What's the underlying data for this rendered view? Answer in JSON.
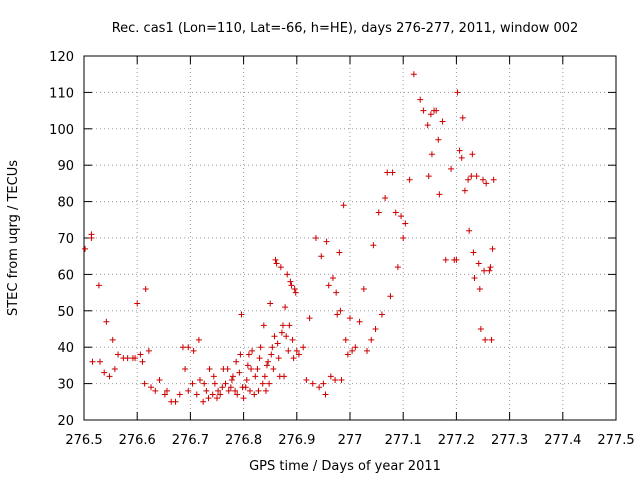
{
  "chart_data": {
    "type": "scatter",
    "title": "Rec. cas1 (Lon=110, Lat=-66, h=HE), days 276-277, 2011, window 002",
    "xlabel": "GPS time / Days of year 2011",
    "ylabel": "STEC from uqrg / TECUs",
    "xlim": [
      276.5,
      277.5
    ],
    "ylim": [
      20,
      120
    ],
    "xticks": [
      276.5,
      276.6,
      276.7,
      276.8,
      276.9,
      277,
      277.1,
      277.2,
      277.3,
      277.4,
      277.5
    ],
    "xtick_labels": [
      "276.5",
      "276.6",
      "276.7",
      "276.8",
      "276.9",
      "277",
      "277.1",
      "277.2",
      "277.3",
      "277.4",
      "277.5"
    ],
    "yticks": [
      20,
      30,
      40,
      50,
      60,
      70,
      80,
      90,
      100,
      110,
      120
    ],
    "ytick_labels": [
      "20",
      "30",
      "40",
      "50",
      "60",
      "70",
      "80",
      "90",
      "100",
      "110",
      "120"
    ],
    "marker": "+",
    "marker_color": "#cc0000",
    "series": [
      {
        "name": "STEC",
        "points": [
          [
            276.502,
            67
          ],
          [
            276.514,
            71
          ],
          [
            276.514,
            70
          ],
          [
            276.516,
            36
          ],
          [
            276.528,
            57
          ],
          [
            276.53,
            36
          ],
          [
            276.538,
            33
          ],
          [
            276.542,
            47
          ],
          [
            276.548,
            32
          ],
          [
            276.554,
            42
          ],
          [
            276.558,
            34
          ],
          [
            276.564,
            38
          ],
          [
            276.574,
            37
          ],
          [
            276.582,
            37
          ],
          [
            276.592,
            37
          ],
          [
            276.596,
            37
          ],
          [
            276.6,
            52
          ],
          [
            276.606,
            38
          ],
          [
            276.61,
            36
          ],
          [
            276.614,
            30
          ],
          [
            276.616,
            56
          ],
          [
            276.622,
            39
          ],
          [
            276.626,
            29
          ],
          [
            276.634,
            28
          ],
          [
            276.642,
            31
          ],
          [
            276.652,
            27
          ],
          [
            276.656,
            28
          ],
          [
            276.664,
            25
          ],
          [
            276.672,
            25
          ],
          [
            276.68,
            27
          ],
          [
            276.686,
            40
          ],
          [
            276.69,
            34
          ],
          [
            276.696,
            40
          ],
          [
            276.696,
            28
          ],
          [
            276.704,
            30
          ],
          [
            276.706,
            39
          ],
          [
            276.712,
            27
          ],
          [
            276.716,
            42
          ],
          [
            276.718,
            31
          ],
          [
            276.724,
            25
          ],
          [
            276.726,
            30
          ],
          [
            276.73,
            28
          ],
          [
            276.734,
            26
          ],
          [
            276.736,
            34
          ],
          [
            276.742,
            27
          ],
          [
            276.744,
            32
          ],
          [
            276.746,
            30
          ],
          [
            276.75,
            26
          ],
          [
            276.752,
            28
          ],
          [
            276.756,
            27
          ],
          [
            276.76,
            29
          ],
          [
            276.762,
            34
          ],
          [
            276.766,
            30
          ],
          [
            276.77,
            34
          ],
          [
            276.772,
            28
          ],
          [
            276.776,
            29
          ],
          [
            276.778,
            31
          ],
          [
            276.78,
            32
          ],
          [
            276.784,
            28
          ],
          [
            276.786,
            36
          ],
          [
            276.788,
            27
          ],
          [
            276.792,
            33
          ],
          [
            276.794,
            38
          ],
          [
            276.796,
            49
          ],
          [
            276.798,
            29
          ],
          [
            276.8,
            26
          ],
          [
            276.804,
            29
          ],
          [
            276.806,
            31
          ],
          [
            276.808,
            35
          ],
          [
            276.81,
            38
          ],
          [
            276.812,
            28
          ],
          [
            276.814,
            34
          ],
          [
            276.816,
            39
          ],
          [
            276.82,
            27
          ],
          [
            276.822,
            32
          ],
          [
            276.826,
            34
          ],
          [
            276.828,
            28
          ],
          [
            276.83,
            37
          ],
          [
            276.832,
            40
          ],
          [
            276.836,
            30
          ],
          [
            276.838,
            46
          ],
          [
            276.84,
            32
          ],
          [
            276.842,
            28
          ],
          [
            276.844,
            35
          ],
          [
            276.846,
            36
          ],
          [
            276.848,
            30
          ],
          [
            276.85,
            52
          ],
          [
            276.852,
            38
          ],
          [
            276.854,
            40
          ],
          [
            276.856,
            34
          ],
          [
            276.858,
            43
          ],
          [
            276.86,
            64
          ],
          [
            276.862,
            63
          ],
          [
            276.864,
            41
          ],
          [
            276.866,
            37
          ],
          [
            276.868,
            32
          ],
          [
            276.87,
            62
          ],
          [
            276.872,
            44
          ],
          [
            276.874,
            46
          ],
          [
            276.876,
            32
          ],
          [
            276.878,
            51
          ],
          [
            276.88,
            43
          ],
          [
            276.882,
            60
          ],
          [
            276.884,
            39
          ],
          [
            276.886,
            46
          ],
          [
            276.888,
            58
          ],
          [
            276.89,
            57
          ],
          [
            276.892,
            42
          ],
          [
            276.894,
            37
          ],
          [
            276.896,
            56
          ],
          [
            276.898,
            55
          ],
          [
            276.9,
            39
          ],
          [
            276.904,
            38
          ],
          [
            276.912,
            40
          ],
          [
            276.918,
            31
          ],
          [
            276.924,
            48
          ],
          [
            276.93,
            30
          ],
          [
            276.936,
            70
          ],
          [
            276.942,
            29
          ],
          [
            276.946,
            65
          ],
          [
            276.95,
            30
          ],
          [
            276.954,
            27
          ],
          [
            276.956,
            69
          ],
          [
            276.96,
            57
          ],
          [
            276.964,
            32
          ],
          [
            276.968,
            59
          ],
          [
            276.972,
            31
          ],
          [
            276.974,
            55
          ],
          [
            276.976,
            49
          ],
          [
            276.98,
            66
          ],
          [
            276.982,
            50
          ],
          [
            276.984,
            31
          ],
          [
            276.988,
            79
          ],
          [
            276.992,
            42
          ],
          [
            276.996,
            38
          ],
          [
            277.0,
            48
          ],
          [
            277.004,
            39
          ],
          [
            277.01,
            40
          ],
          [
            277.018,
            47
          ],
          [
            277.026,
            56
          ],
          [
            277.032,
            39
          ],
          [
            277.04,
            42
          ],
          [
            277.044,
            68
          ],
          [
            277.048,
            45
          ],
          [
            277.054,
            77
          ],
          [
            277.06,
            49
          ],
          [
            277.066,
            81
          ],
          [
            277.07,
            88
          ],
          [
            277.076,
            54
          ],
          [
            277.08,
            88
          ],
          [
            277.086,
            77
          ],
          [
            277.09,
            62
          ],
          [
            277.096,
            76
          ],
          [
            277.1,
            70
          ],
          [
            277.104,
            74
          ],
          [
            277.112,
            86
          ],
          [
            277.12,
            115
          ],
          [
            277.132,
            108
          ],
          [
            277.138,
            105
          ],
          [
            277.146,
            101
          ],
          [
            277.148,
            87
          ],
          [
            277.152,
            104
          ],
          [
            277.154,
            93
          ],
          [
            277.158,
            105
          ],
          [
            277.162,
            105
          ],
          [
            277.166,
            97
          ],
          [
            277.168,
            82
          ],
          [
            277.174,
            102
          ],
          [
            277.18,
            64
          ],
          [
            277.19,
            89
          ],
          [
            277.196,
            64
          ],
          [
            277.2,
            64
          ],
          [
            277.202,
            110
          ],
          [
            277.206,
            94
          ],
          [
            277.21,
            92
          ],
          [
            277.212,
            103
          ],
          [
            277.216,
            83
          ],
          [
            277.222,
            86
          ],
          [
            277.224,
            72
          ],
          [
            277.228,
            87
          ],
          [
            277.23,
            93
          ],
          [
            277.232,
            66
          ],
          [
            277.234,
            59
          ],
          [
            277.238,
            87
          ],
          [
            277.242,
            63
          ],
          [
            277.244,
            56
          ],
          [
            277.246,
            45
          ],
          [
            277.25,
            86
          ],
          [
            277.252,
            61
          ],
          [
            277.254,
            42
          ],
          [
            277.256,
            85
          ],
          [
            277.262,
            61
          ],
          [
            277.264,
            62
          ],
          [
            277.266,
            42
          ],
          [
            277.268,
            67
          ],
          [
            277.27,
            86
          ]
        ]
      }
    ]
  }
}
